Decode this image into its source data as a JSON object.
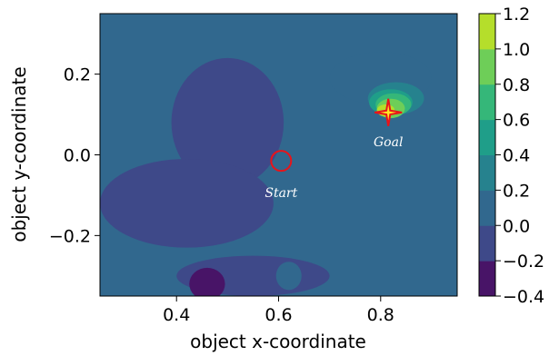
{
  "chart_data": {
    "type": "heatmap",
    "title": "",
    "xlabel": "object x-coordinate",
    "ylabel": "object y-coordinate",
    "xlim": [
      0.25,
      0.95
    ],
    "ylim": [
      -0.35,
      0.35
    ],
    "xticks": [
      0.4,
      0.6,
      0.8
    ],
    "yticks": [
      -0.2,
      0.0,
      0.2
    ],
    "xtick_labels": [
      "0.4",
      "0.6",
      "0.8"
    ],
    "ytick_labels": [
      "−0.2",
      "0.0",
      "0.2"
    ],
    "grid": false,
    "colorbar": {
      "vmin": -0.4,
      "vmax": 1.2,
      "levels": [
        -0.4,
        -0.2,
        0.0,
        0.2,
        0.4,
        0.6,
        0.8,
        1.0,
        1.2
      ],
      "tick_labels": [
        "−0.4",
        "−0.2",
        "0.0",
        "0.2",
        "0.4",
        "0.6",
        "0.8",
        "1.0",
        "1.2"
      ],
      "colormap": "viridis"
    },
    "background_level": 0.0,
    "regions": [
      {
        "level": -0.1,
        "x": 0.5,
        "y": 0.08,
        "w": 0.22,
        "h": 0.32
      },
      {
        "level": -0.1,
        "x": 0.42,
        "y": -0.12,
        "w": 0.34,
        "h": 0.22
      },
      {
        "level": -0.1,
        "x": 0.55,
        "y": -0.3,
        "w": 0.3,
        "h": 0.1
      },
      {
        "level": -0.3,
        "x": 0.46,
        "y": -0.32,
        "w": 0.07,
        "h": 0.08
      },
      {
        "level": 0.1,
        "x": 0.8,
        "y": 0.19,
        "w": 0.2,
        "h": 0.13
      },
      {
        "level": 0.1,
        "x": 0.62,
        "y": -0.3,
        "w": 0.05,
        "h": 0.07
      },
      {
        "level": 0.3,
        "x": 0.83,
        "y": 0.14,
        "w": 0.11,
        "h": 0.08
      },
      {
        "level": 0.5,
        "x": 0.82,
        "y": 0.13,
        "w": 0.085,
        "h": 0.065
      },
      {
        "level": 0.7,
        "x": 0.825,
        "y": 0.125,
        "w": 0.07,
        "h": 0.055
      },
      {
        "level": 0.9,
        "x": 0.82,
        "y": 0.115,
        "w": 0.055,
        "h": 0.048
      },
      {
        "level": 1.1,
        "x": 0.81,
        "y": 0.11,
        "w": 0.035,
        "h": 0.03
      }
    ],
    "markers": [
      {
        "name": "start",
        "label": "Start",
        "x": 0.605,
        "y": -0.015,
        "shape": "circle",
        "color": "#e8141a"
      },
      {
        "name": "goal",
        "label": "Goal",
        "x": 0.815,
        "y": 0.105,
        "shape": "star",
        "color": "#e8141a"
      }
    ]
  }
}
